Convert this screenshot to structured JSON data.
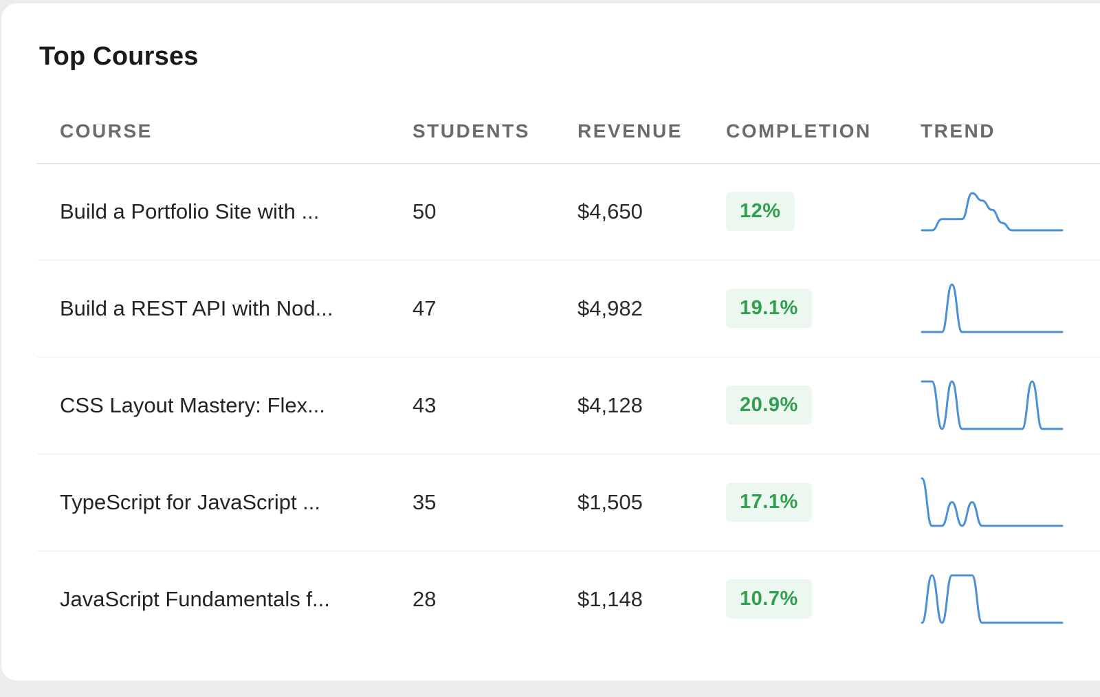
{
  "title": "Top Courses",
  "columns": {
    "course": "COURSE",
    "students": "STUDENTS",
    "revenue": "REVENUE",
    "completion": "COMPLETION",
    "trend": "TREND"
  },
  "rows": [
    {
      "course": "Build a Portfolio Site with ...",
      "students": "50",
      "revenue": "$4,650",
      "completion": "12%",
      "trend": [
        0,
        0,
        0.3,
        0.3,
        0.3,
        1,
        0.8,
        0.55,
        0.2,
        0,
        0,
        0,
        0,
        0,
        0
      ]
    },
    {
      "course": "Build a REST API with Nod...",
      "students": "47",
      "revenue": "$4,982",
      "completion": "19.1%",
      "trend": [
        0,
        0,
        0,
        1,
        0,
        0,
        0,
        0,
        0,
        0,
        0,
        0,
        0,
        0,
        0
      ]
    },
    {
      "course": "CSS Layout Mastery: Flex...",
      "students": "43",
      "revenue": "$4,128",
      "completion": "20.9%",
      "trend": [
        1,
        1,
        0,
        1,
        0,
        0,
        0,
        0,
        0,
        0,
        0,
        1,
        0,
        0,
        0
      ]
    },
    {
      "course": "TypeScript for JavaScript ...",
      "students": "35",
      "revenue": "$1,505",
      "completion": "17.1%",
      "trend": [
        1,
        0,
        0,
        0.5,
        0,
        0.5,
        0,
        0,
        0,
        0,
        0,
        0,
        0,
        0,
        0
      ]
    },
    {
      "course": "JavaScript Fundamentals f...",
      "students": "28",
      "revenue": "$1,148",
      "completion": "10.7%",
      "trend": [
        0,
        1,
        0,
        1,
        1,
        1,
        0,
        0,
        0,
        0,
        0,
        0,
        0,
        0,
        0
      ]
    }
  ],
  "colors": {
    "sparkline": "#4a90d9",
    "badge_bg": "#ecf8ef",
    "badge_text": "#2f9e4f"
  }
}
